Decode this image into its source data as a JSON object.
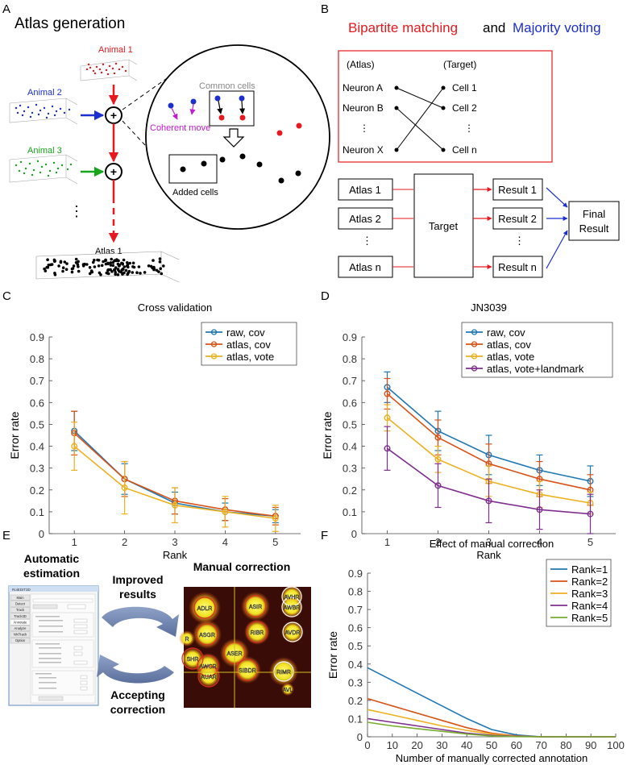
{
  "panelA": {
    "letter": "A",
    "title": "Atlas generation",
    "animal1": "Animal 1",
    "animal2": "Animal 2",
    "animal3": "Animal 3",
    "common_cells": "Common cells",
    "coherent_move": "Coherent move",
    "added_cells": "Added cells",
    "dots": "⋮",
    "atlas1": "Atlas 1",
    "colors": {
      "red": "#e8191e",
      "blue": "#1c2fd0",
      "green": "#17a51b",
      "magenta": "#c21bd3"
    }
  },
  "panelB": {
    "letter": "B",
    "title_part1": "Bipartite matching",
    "title_and": "and",
    "title_part2": "Majority voting",
    "atlas_hdr": "(Atlas)",
    "target_hdr": "(Target)",
    "neurons": [
      "Neuron A",
      "Neuron B",
      "⋮",
      "Neuron X"
    ],
    "cells": [
      "Cell 1",
      "Cell 2",
      "⋮",
      "Cell n"
    ],
    "atlases": [
      "Atlas 1",
      "Atlas 2",
      "⋮",
      "Atlas n"
    ],
    "target": "Target",
    "results": [
      "Result 1",
      "Result 2",
      "⋮",
      "Result n"
    ],
    "final1": "Final",
    "final2": "Result"
  },
  "panelE": {
    "letter": "E",
    "auto1": "Automatic",
    "auto2": "estimation",
    "improved1": "Improved",
    "improved2": "results",
    "manual": "Manual correction",
    "accept1": "Accepting",
    "accept2": "correction",
    "window_title": "RoiEDIT3D",
    "sidebar": [
      "Main",
      "Detect",
      "Track",
      "Track3D",
      "Annotate",
      "Analyze",
      "NNTrack",
      "Option"
    ],
    "neuron_labels": [
      "ADLR",
      "ASIR",
      "AVHR",
      "AWBR",
      "ASGR",
      "RIBR",
      "AVDR",
      "ASER",
      "SHR",
      "AWCR",
      "SIBDR",
      "AUAR",
      "RIMR",
      "AVL",
      "R"
    ]
  },
  "chart_data": [
    {
      "panel": "C",
      "type": "line",
      "title": "Cross validation",
      "xlabel": "Rank",
      "ylabel": "Error rate",
      "x": [
        1,
        2,
        3,
        4,
        5
      ],
      "xlim": [
        0.5,
        5.5
      ],
      "ylim": [
        0,
        0.9
      ],
      "yticks": [
        "0",
        "0.1",
        "0.2",
        "0.3",
        "0.4",
        "0.5",
        "0.6",
        "0.7",
        "0.8",
        "0.9"
      ],
      "legend": "top-right",
      "series": [
        {
          "name": "raw, cov",
          "color": "#1f77b4",
          "values": [
            0.47,
            0.25,
            0.14,
            0.1,
            0.08
          ],
          "err": [
            0.09,
            0.07,
            0.05,
            0.04,
            0.03
          ]
        },
        {
          "name": "atlas, cov",
          "color": "#d95319",
          "values": [
            0.46,
            0.25,
            0.15,
            0.11,
            0.08
          ],
          "err": [
            0.1,
            0.08,
            0.06,
            0.05,
            0.04
          ]
        },
        {
          "name": "atlas, vote",
          "color": "#edb120",
          "values": [
            0.4,
            0.21,
            0.13,
            0.1,
            0.07
          ],
          "err": [
            0.11,
            0.12,
            0.08,
            0.07,
            0.06
          ]
        }
      ]
    },
    {
      "panel": "D",
      "type": "line",
      "title": "JN3039",
      "xlabel": "Rank",
      "ylabel": "Error rate",
      "x": [
        1,
        2,
        3,
        4,
        5
      ],
      "xlim": [
        0.5,
        5.5
      ],
      "ylim": [
        0,
        0.9
      ],
      "yticks": [
        "0",
        "0.1",
        "0.2",
        "0.3",
        "0.4",
        "0.5",
        "0.6",
        "0.7",
        "0.8",
        "0.9"
      ],
      "legend": "top-right",
      "series": [
        {
          "name": "raw, cov",
          "color": "#1f77b4",
          "values": [
            0.67,
            0.47,
            0.36,
            0.29,
            0.24
          ],
          "err": [
            0.07,
            0.09,
            0.09,
            0.07,
            0.07
          ]
        },
        {
          "name": "atlas, cov",
          "color": "#d95319",
          "values": [
            0.64,
            0.44,
            0.32,
            0.25,
            0.2
          ],
          "err": [
            0.07,
            0.08,
            0.09,
            0.08,
            0.07
          ]
        },
        {
          "name": "atlas, vote",
          "color": "#edb120",
          "values": [
            0.53,
            0.34,
            0.24,
            0.18,
            0.14
          ],
          "err": [
            0.06,
            0.06,
            0.07,
            0.06,
            0.05
          ]
        },
        {
          "name": "atlas, vote+landmark",
          "color": "#7e2f8e",
          "values": [
            0.39,
            0.22,
            0.15,
            0.11,
            0.09
          ],
          "err": [
            0.1,
            0.1,
            0.1,
            0.09,
            0.09
          ]
        }
      ]
    },
    {
      "panel": "F",
      "type": "line",
      "title": "Effect of manual correction",
      "xlabel": "Number of manually corrected annotation",
      "ylabel": "Error rate",
      "x": [
        0,
        10,
        20,
        30,
        40,
        50,
        60,
        70,
        80,
        90,
        100
      ],
      "xlim": [
        0,
        100
      ],
      "ylim": [
        0,
        0.9
      ],
      "xticks": [
        "0",
        "10",
        "20",
        "30",
        "40",
        "50",
        "60",
        "70",
        "80",
        "90",
        "100"
      ],
      "yticks": [
        "0",
        "0.1",
        "0.2",
        "0.3",
        "0.4",
        "0.5",
        "0.6",
        "0.7",
        "0.8",
        "0.9"
      ],
      "legend": "top-right",
      "series": [
        {
          "name": "Rank=1",
          "color": "#1f77b4",
          "values": [
            0.38,
            0.31,
            0.24,
            0.17,
            0.1,
            0.04,
            0.01,
            0.0,
            0.0,
            0.0,
            0.0
          ]
        },
        {
          "name": "Rank=2",
          "color": "#d95319",
          "values": [
            0.21,
            0.17,
            0.13,
            0.09,
            0.05,
            0.02,
            0.005,
            0.0,
            0.0,
            0.0,
            0.0
          ]
        },
        {
          "name": "Rank=3",
          "color": "#edb120",
          "values": [
            0.15,
            0.12,
            0.09,
            0.06,
            0.035,
            0.015,
            0.003,
            0.0,
            0.0,
            0.0,
            0.0
          ]
        },
        {
          "name": "Rank=4",
          "color": "#7e2f8e",
          "values": [
            0.1,
            0.08,
            0.06,
            0.04,
            0.02,
            0.008,
            0.002,
            0.0,
            0.0,
            0.0,
            0.0
          ]
        },
        {
          "name": "Rank=5",
          "color": "#77ac30",
          "values": [
            0.08,
            0.06,
            0.045,
            0.03,
            0.015,
            0.005,
            0.001,
            0.0,
            0.0,
            0.0,
            0.0
          ]
        }
      ]
    }
  ]
}
